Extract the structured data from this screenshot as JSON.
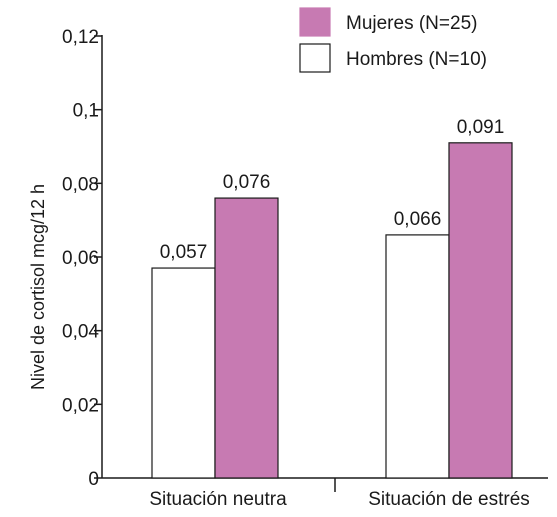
{
  "chart_data": {
    "type": "bar",
    "title": "",
    "xlabel": "",
    "ylabel": "Nivel de cortisol mcg/12 h",
    "categories": [
      "Situación neutra",
      "Situación de estrés"
    ],
    "series": [
      {
        "name": "Hombres (N=10)",
        "values": [
          0.057,
          0.066
        ],
        "value_labels": [
          "0,057",
          "0,066"
        ],
        "color": "#ffffff"
      },
      {
        "name": "Mujeres (N=25)",
        "values": [
          0.076,
          0.091
        ],
        "value_labels": [
          "0,076",
          "0,091"
        ],
        "color": "#c77ab2"
      }
    ],
    "legend": [
      {
        "label": "Mujeres (N=25)",
        "color": "#c77ab2"
      },
      {
        "label": "Hombres (N=10)",
        "color": "#ffffff"
      }
    ],
    "legend_position": "top-right",
    "ylim": [
      0,
      0.12
    ],
    "yticks": [
      0,
      0.02,
      0.04,
      0.06,
      0.08,
      0.1,
      0.12
    ],
    "ytick_labels": [
      "0",
      "0,02",
      "0,04",
      "0,06",
      "0,08",
      "0,1",
      "0,12"
    ],
    "grid": false
  }
}
